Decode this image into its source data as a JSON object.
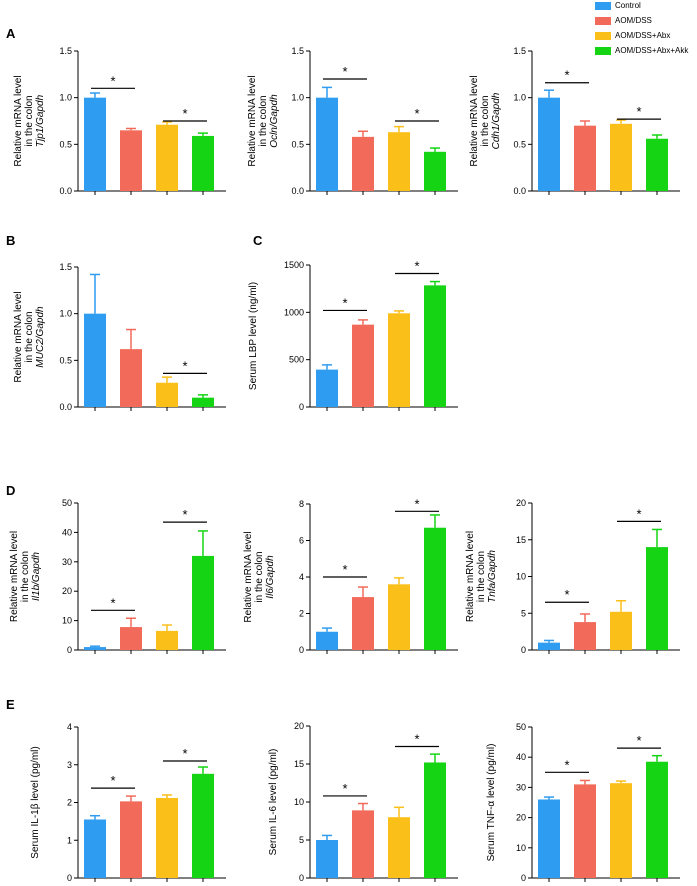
{
  "panel_labels": [
    "A",
    "B",
    "C",
    "D",
    "E"
  ],
  "legend": [
    {
      "label": "Control",
      "color": "#2e9cf0"
    },
    {
      "label": "AOM/DSS",
      "color": "#f26b5a"
    },
    {
      "label": "AOM/DSS+Abx",
      "color": "#fbbf1a"
    },
    {
      "label": "AOM/DSS+Abx+Akk",
      "color": "#14d414"
    }
  ],
  "colors": [
    "#2e9cf0",
    "#f26b5a",
    "#fbbf1a",
    "#14d414"
  ],
  "chart_data": [
    {
      "type": "bar",
      "id": "tjp1",
      "categories": [
        "Control",
        "AOM/DSS",
        "AOM/DSS+Abx",
        "AOM/DSS+Abx+Akk"
      ],
      "ylabel": [
        "Relative mRNA level",
        "in the colon",
        "Tjp1/Gapdh"
      ],
      "italic_line": 2,
      "ylim": [
        0,
        1.5
      ],
      "ticks": [
        0.0,
        0.5,
        1.0,
        1.5
      ],
      "tick_labels": [
        "0.0",
        "0.5",
        "1.0",
        "1.5"
      ],
      "values": [
        1.0,
        0.65,
        0.71,
        0.59
      ],
      "errors": [
        0.05,
        0.02,
        0.03,
        0.03
      ],
      "significance": [
        {
          "from": 0,
          "to": 1,
          "level": 1.1,
          "label": "*"
        },
        {
          "from": 2,
          "to": 3,
          "level": 0.75,
          "label": "*"
        }
      ]
    },
    {
      "type": "bar",
      "id": "ocln",
      "categories": [
        "Control",
        "AOM/DSS",
        "AOM/DSS+Abx",
        "AOM/DSS+Abx+Akk"
      ],
      "ylabel": [
        "Relative mRNA level",
        "in the colon",
        "Ocln/Gapdh"
      ],
      "italic_line": 2,
      "ylim": [
        0,
        1.5
      ],
      "ticks": [
        0.0,
        0.5,
        1.0,
        1.5
      ],
      "tick_labels": [
        "0.0",
        "0.5",
        "1.0",
        "1.5"
      ],
      "values": [
        1.0,
        0.58,
        0.63,
        0.42
      ],
      "errors": [
        0.11,
        0.06,
        0.06,
        0.04
      ],
      "significance": [
        {
          "from": 0,
          "to": 1,
          "level": 1.2,
          "label": "*"
        },
        {
          "from": 2,
          "to": 3,
          "level": 0.75,
          "label": "*"
        }
      ]
    },
    {
      "type": "bar",
      "id": "cdh1",
      "categories": [
        "Control",
        "AOM/DSS",
        "AOM/DSS+Abx",
        "AOM/DSS+Abx+Akk"
      ],
      "ylabel": [
        "Relative mRNA level",
        "in the colon",
        "Cdh1/Gapdh"
      ],
      "italic_line": 2,
      "ylim": [
        0,
        1.5
      ],
      "ticks": [
        0.0,
        0.5,
        1.0,
        1.5
      ],
      "tick_labels": [
        "0.0",
        "0.5",
        "1.0",
        "1.5"
      ],
      "values": [
        1.0,
        0.7,
        0.72,
        0.56
      ],
      "errors": [
        0.08,
        0.05,
        0.04,
        0.04
      ],
      "significance": [
        {
          "from": 0,
          "to": 1,
          "level": 1.16,
          "label": "*"
        },
        {
          "from": 2,
          "to": 3,
          "level": 0.77,
          "label": "*"
        }
      ]
    },
    {
      "type": "bar",
      "id": "muc2",
      "categories": [
        "Control",
        "AOM/DSS",
        "AOM/DSS+Abx",
        "AOM/DSS+Abx+Akk"
      ],
      "ylabel": [
        "Relative mRNA level",
        "in the colon",
        "MUC2/Gapdh"
      ],
      "italic_line": 2,
      "ylim": [
        0,
        1.5
      ],
      "ticks": [
        0.0,
        0.5,
        1.0,
        1.5
      ],
      "tick_labels": [
        "0.0",
        "0.5",
        "1.0",
        "1.5"
      ],
      "values": [
        1.0,
        0.62,
        0.26,
        0.1
      ],
      "errors": [
        0.42,
        0.21,
        0.06,
        0.03
      ],
      "significance": [
        {
          "from": 2,
          "to": 3,
          "level": 0.36,
          "label": "*"
        }
      ]
    },
    {
      "type": "bar",
      "id": "lbp",
      "categories": [
        "Control",
        "AOM/DSS",
        "AOM/DSS+Abx",
        "AOM/DSS+Abx+Akk"
      ],
      "ylabel": [
        "Serum LBP level (ng/ml)"
      ],
      "italic_line": -1,
      "ylim": [
        0,
        1500
      ],
      "ticks": [
        0,
        500,
        1000,
        1500
      ],
      "tick_labels": [
        "0",
        "500",
        "1000",
        "1500"
      ],
      "values": [
        395,
        870,
        990,
        1285
      ],
      "errors": [
        50,
        50,
        25,
        40
      ],
      "significance": [
        {
          "from": 0,
          "to": 1,
          "level": 1020,
          "label": "*"
        },
        {
          "from": 2,
          "to": 3,
          "level": 1410,
          "label": "*"
        }
      ]
    },
    {
      "type": "bar",
      "id": "il1b",
      "categories": [
        "Control",
        "AOM/DSS",
        "AOM/DSS+Abx",
        "AOM/DSS+Abx+Akk"
      ],
      "ylabel": [
        "Relative mRNA level",
        "in the colon",
        "Il1b/Gapdh"
      ],
      "italic_line": 2,
      "ylim": [
        0,
        50
      ],
      "ticks": [
        0,
        10,
        20,
        30,
        40,
        50
      ],
      "tick_labels": [
        "0",
        "10",
        "20",
        "30",
        "40",
        "50"
      ],
      "values": [
        1.0,
        7.8,
        6.5,
        32.0
      ],
      "errors": [
        0.3,
        3.0,
        2.0,
        8.5
      ],
      "significance": [
        {
          "from": 0,
          "to": 1,
          "level": 13.5,
          "label": "*"
        },
        {
          "from": 2,
          "to": 3,
          "level": 43.5,
          "label": "*"
        }
      ]
    },
    {
      "type": "bar",
      "id": "il6",
      "categories": [
        "Control",
        "AOM/DSS",
        "AOM/DSS+Abx",
        "AOM/DSS+Abx+Akk"
      ],
      "ylabel": [
        "Relative mRNA level",
        "in the colon",
        "Il6/Gapdh"
      ],
      "italic_line": 2,
      "ylim": [
        0,
        8
      ],
      "ticks": [
        0,
        2,
        4,
        6,
        8
      ],
      "tick_labels": [
        "0",
        "2",
        "4",
        "6",
        "8"
      ],
      "values": [
        1.0,
        2.9,
        3.6,
        6.7
      ],
      "errors": [
        0.2,
        0.55,
        0.35,
        0.7
      ],
      "significance": [
        {
          "from": 0,
          "to": 1,
          "level": 4.0,
          "label": "*"
        },
        {
          "from": 2,
          "to": 3,
          "level": 7.6,
          "label": "*"
        }
      ]
    },
    {
      "type": "bar",
      "id": "tnfa",
      "categories": [
        "Control",
        "AOM/DSS",
        "AOM/DSS+Abx",
        "AOM/DSS+Abx+Akk"
      ],
      "ylabel": [
        "Relative mRNA level",
        "in the colon",
        "Tnfa/Gapdh"
      ],
      "italic_line": 2,
      "ylim": [
        0,
        20
      ],
      "ticks": [
        0,
        5,
        10,
        15,
        20
      ],
      "tick_labels": [
        "0",
        "5",
        "10",
        "15",
        "20"
      ],
      "values": [
        1.0,
        3.8,
        5.2,
        14.0
      ],
      "errors": [
        0.3,
        1.1,
        1.5,
        2.4
      ],
      "significance": [
        {
          "from": 0,
          "to": 1,
          "level": 6.5,
          "label": "*"
        },
        {
          "from": 2,
          "to": 3,
          "level": 17.5,
          "label": "*"
        }
      ]
    },
    {
      "type": "bar",
      "id": "il1b_serum",
      "categories": [
        "Control",
        "AOM/DSS",
        "AOM/DSS+Abx",
        "AOM/DSS+Abx+Akk"
      ],
      "ylabel": [
        "Serum IL-1β level (pg/ml)"
      ],
      "italic_line": -1,
      "ylim": [
        0,
        4
      ],
      "ticks": [
        0,
        1,
        2,
        3,
        4
      ],
      "tick_labels": [
        "0",
        "1",
        "2",
        "3",
        "4"
      ],
      "values": [
        1.55,
        2.03,
        2.12,
        2.76
      ],
      "errors": [
        0.1,
        0.14,
        0.08,
        0.18
      ],
      "significance": [
        {
          "from": 0,
          "to": 1,
          "level": 2.38,
          "label": "*"
        },
        {
          "from": 2,
          "to": 3,
          "level": 3.1,
          "label": "*"
        }
      ]
    },
    {
      "type": "bar",
      "id": "il6_serum",
      "categories": [
        "Control",
        "AOM/DSS",
        "AOM/DSS+Abx",
        "AOM/DSS+Abx+Akk"
      ],
      "ylabel": [
        "Serum IL-6 level (pg/ml)"
      ],
      "italic_line": -1,
      "ylim": [
        0,
        20
      ],
      "ticks": [
        0,
        5,
        10,
        15,
        20
      ],
      "tick_labels": [
        "0",
        "5",
        "10",
        "15",
        "20"
      ],
      "values": [
        5.0,
        8.9,
        8.0,
        15.2
      ],
      "errors": [
        0.6,
        0.9,
        1.3,
        1.1
      ],
      "significance": [
        {
          "from": 0,
          "to": 1,
          "level": 10.8,
          "label": "*"
        },
        {
          "from": 2,
          "to": 3,
          "level": 17.3,
          "label": "*"
        }
      ]
    },
    {
      "type": "bar",
      "id": "tnfa_serum",
      "categories": [
        "Control",
        "AOM/DSS",
        "AOM/DSS+Abx",
        "AOM/DSS+Abx+Akk"
      ],
      "ylabel": [
        "Serum TNF-α level (pg/ml)"
      ],
      "italic_line": -1,
      "ylim": [
        0,
        50
      ],
      "ticks": [
        0,
        10,
        20,
        30,
        40,
        50
      ],
      "tick_labels": [
        "0",
        "10",
        "20",
        "30",
        "40",
        "50"
      ],
      "values": [
        26.0,
        31.0,
        31.4,
        38.5
      ],
      "errors": [
        0.8,
        1.3,
        0.7,
        2.0
      ],
      "significance": [
        {
          "from": 0,
          "to": 1,
          "level": 35.0,
          "label": "*"
        },
        {
          "from": 2,
          "to": 3,
          "level": 43.0,
          "label": "*"
        }
      ]
    }
  ]
}
